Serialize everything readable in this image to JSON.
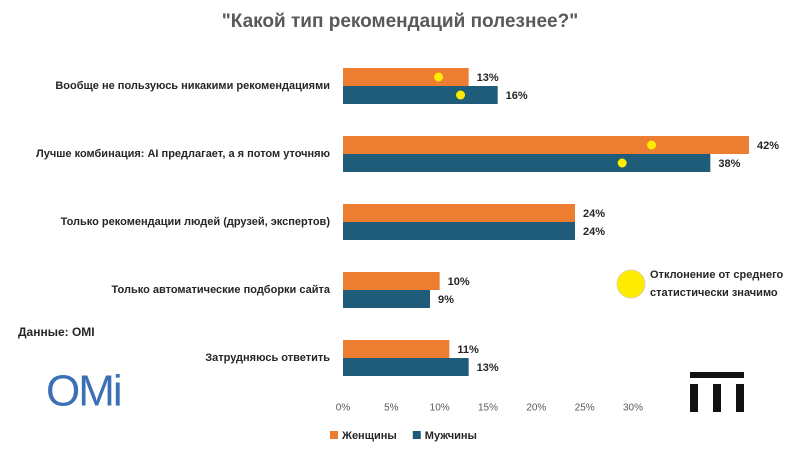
{
  "chart_data": {
    "type": "hbar",
    "title": "\"Какой тип рекомендаций полезнее?\"",
    "categories": [
      "Вообще не пользуюсь никакими рекомендациями",
      "Лучше комбинация: AI предлагает, а я потом уточняю",
      "Только рекомендации людей (друзей, экспертов)",
      "Только автоматические подборки сайта",
      "Затрудняюсь ответить"
    ],
    "series": [
      {
        "name": "Женщины",
        "color": "#ed7d31",
        "values": [
          13,
          42,
          24,
          10,
          11
        ],
        "value_labels": [
          "13%",
          "42%",
          "24%",
          "10%",
          "11%"
        ],
        "significant": [
          true,
          true,
          false,
          false,
          false
        ]
      },
      {
        "name": "Мужчины",
        "color": "#1f5c7a",
        "values": [
          16,
          38,
          24,
          9,
          13
        ],
        "value_labels": [
          "16%",
          "38%",
          "24%",
          "9%",
          "13%"
        ],
        "significant": [
          true,
          true,
          false,
          false,
          false
        ]
      }
    ],
    "xlim": [
      0,
      42
    ],
    "xticks": [
      {
        "value": 0,
        "label": "0%"
      },
      {
        "value": 5,
        "label": "5%"
      },
      {
        "value": 10,
        "label": "10%"
      },
      {
        "value": 15,
        "label": "15%"
      },
      {
        "value": 20,
        "label": "20%"
      },
      {
        "value": 25,
        "label": "25%"
      },
      {
        "value": 30,
        "label": "30%"
      }
    ],
    "significance_note": [
      "Отклонение от среднего",
      "статистически значимо"
    ],
    "significance_color": "#ffeb00",
    "source": "Данные: OMI",
    "logo": "OMi"
  }
}
